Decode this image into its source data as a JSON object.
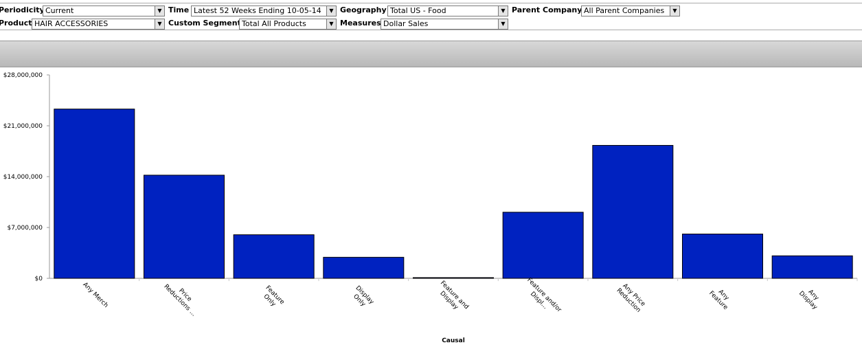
{
  "filters": [
    {
      "label": "Periodicity",
      "value": "Current"
    },
    {
      "label": "Time",
      "value": "Latest 52 Weeks Ending 10-05-14"
    },
    {
      "label": "Geography",
      "value": "Total US - Food"
    },
    {
      "label": "Parent Company",
      "value": "All Parent Companies"
    },
    {
      "label": "Product",
      "value": "HAIR ACCESSORIES"
    },
    {
      "label": "Custom Segment",
      "value": "Total All Products"
    },
    {
      "label": "Measures",
      "value": "Dollar Sales"
    }
  ],
  "chart_data": {
    "type": "bar",
    "x_label": "Causal",
    "categories": [
      "Any Merch",
      "Price\nReductions ...",
      "Feature\nOnly",
      "Display\nOnly",
      "Feature and\nDisplay",
      "Feature and/or\nDispl...",
      "Any Price\nReduction",
      "Any\nFeature",
      "Any\nDisplay"
    ],
    "values": [
      23300000,
      14200000,
      6000000,
      2900000,
      100000,
      9100000,
      18300000,
      6100000,
      3100000
    ],
    "color": "#0022c0",
    "ylim": [
      0,
      28000000
    ],
    "yticks": [
      {
        "value": 0,
        "label": "$0"
      },
      {
        "value": 7000000,
        "label": "$7,000,000"
      },
      {
        "value": 14000000,
        "label": "$14,000,000"
      },
      {
        "value": 21000000,
        "label": "$21,000,000"
      },
      {
        "value": 28000000,
        "label": "$28,000,000"
      }
    ]
  }
}
